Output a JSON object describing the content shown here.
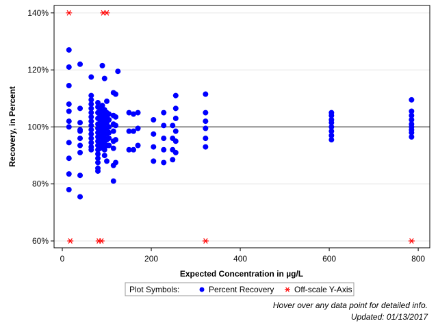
{
  "chart_data": {
    "type": "scatter",
    "xlabel": "Expected Concentration in µg/L",
    "ylabel": "Recovery, in Percent",
    "xlim": [
      -18.5,
      826
    ],
    "ylim": [
      57.6,
      142.6
    ],
    "xticks": [
      0,
      200,
      400,
      600,
      800
    ],
    "yticks": [
      {
        "value": 60,
        "label": "60%"
      },
      {
        "value": 80,
        "label": "80%"
      },
      {
        "value": 100,
        "label": "100%"
      },
      {
        "value": 120,
        "label": "120%"
      },
      {
        "value": 140,
        "label": "140%"
      }
    ],
    "grid": true,
    "refline": 100,
    "legend_title": "Plot Symbols:",
    "legend_position": "bottom",
    "footnotes": [
      "Hover over any data point for detailed info.",
      "Updated: 01/13/2017"
    ],
    "series": [
      {
        "name": "Percent Recovery",
        "color": "#0000ff",
        "marker": "circle",
        "x": [
          15,
          15,
          15,
          15,
          15,
          15,
          15,
          15,
          15,
          15,
          15,
          40,
          40,
          40,
          40,
          40,
          40,
          40,
          40,
          40,
          40,
          65,
          65,
          65,
          65,
          65,
          65,
          65,
          65,
          65,
          65,
          65,
          65,
          65,
          65,
          65,
          80,
          80,
          80,
          80,
          80,
          80,
          80,
          80,
          80,
          80,
          80,
          80,
          80,
          80,
          80,
          80,
          85,
          85,
          85,
          85,
          85,
          85,
          85,
          85,
          90,
          90,
          90,
          90,
          90,
          90,
          90,
          90,
          90,
          95,
          95,
          95,
          95,
          95,
          95,
          95,
          95,
          95,
          95,
          100,
          100,
          100,
          100,
          100,
          100,
          100,
          100,
          100,
          105,
          105,
          105,
          105,
          105,
          105,
          115,
          115,
          115,
          115,
          115,
          115,
          115,
          115,
          120,
          120,
          120,
          120,
          120,
          125,
          150,
          150,
          150,
          160,
          160,
          160,
          170,
          170,
          170,
          205,
          205,
          205,
          205,
          228,
          228,
          228,
          228,
          228,
          248,
          248,
          248,
          248,
          255,
          255,
          255,
          255,
          255,
          255,
          322,
          322,
          322,
          322,
          322,
          322,
          605,
          605,
          605,
          605,
          605,
          605,
          605,
          605,
          785,
          785,
          785,
          785,
          785,
          785,
          785,
          785,
          785
        ],
        "values": [
          127,
          121,
          114.5,
          108,
          105.5,
          102,
          100,
          94.5,
          89,
          83.5,
          78,
          122,
          106.5,
          101.5,
          99,
          98.5,
          96,
          93.5,
          91,
          83,
          75.5,
          117.5,
          111,
          109.5,
          108,
          106.5,
          105,
          103.5,
          102,
          100.5,
          99,
          97.5,
          96,
          94.5,
          93,
          92,
          108.5,
          107,
          105,
          103,
          101,
          99.5,
          98,
          96.5,
          95,
          93.5,
          92,
          90.5,
          89,
          87.5,
          85.5,
          84.5,
          106,
          104,
          102.5,
          100.5,
          98.5,
          96.5,
          94.5,
          92.5,
          121.5,
          107.5,
          105.5,
          103,
          101,
          99,
          97,
          95,
          93,
          117,
          106,
          104,
          102,
          100,
          98,
          96,
          94,
          92,
          90,
          109,
          105,
          103.5,
          101.5,
          99.5,
          97.5,
          95.5,
          93.5,
          88,
          104.5,
          102.5,
          100,
          98,
          96,
          93.5,
          112,
          104,
          101,
          98.5,
          95,
          92.5,
          86.5,
          81,
          111.5,
          103.5,
          100.5,
          95.5,
          87.5,
          119.5,
          105,
          98.5,
          92,
          104.5,
          98.5,
          92,
          105,
          99.5,
          93.5,
          102.5,
          97.5,
          93,
          88,
          105,
          100.5,
          96,
          92,
          87.5,
          100.5,
          96,
          92,
          88.5,
          111,
          106.5,
          103,
          98.5,
          95,
          91,
          111.5,
          105,
          102,
          99.5,
          96,
          93,
          105,
          104,
          102.5,
          101.5,
          100,
          98.5,
          97,
          95.5,
          109.5,
          105.5,
          104,
          102.5,
          101,
          100,
          99,
          98,
          96.5
        ]
      },
      {
        "name": "Off-scale Y-Axis",
        "color": "#ff0000",
        "marker": "asterisk",
        "x": [
          15,
          92,
          100,
          18,
          82,
          88,
          322,
          785
        ],
        "values": [
          140,
          140,
          140,
          60,
          60,
          60,
          60,
          60
        ]
      }
    ]
  }
}
